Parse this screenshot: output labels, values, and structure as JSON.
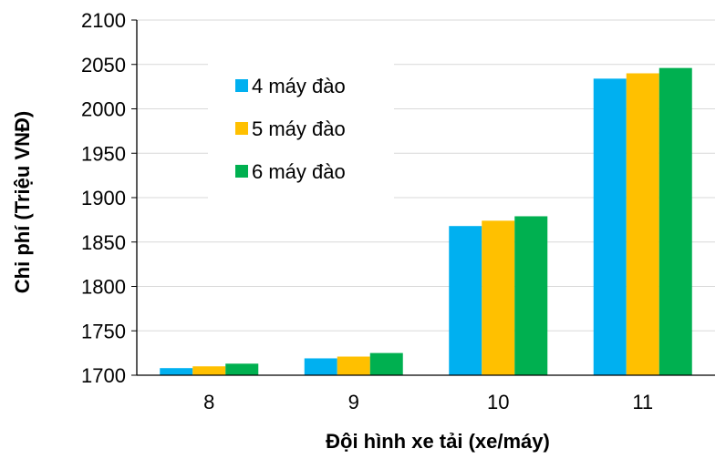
{
  "chart_data": {
    "type": "bar",
    "title": "",
    "xlabel": "Đội hình xe tải (xe/máy)",
    "ylabel": "Chi phí (Triệu VNĐ)",
    "categories": [
      "8",
      "9",
      "10",
      "11"
    ],
    "ylim": [
      1700,
      2100
    ],
    "yticks": [
      1700,
      1750,
      1800,
      1850,
      1900,
      1950,
      2000,
      2050,
      2100
    ],
    "grid": true,
    "legend_position": "top-left",
    "series": [
      {
        "name": "4 máy đào",
        "color": "#00B0F0",
        "values": [
          1708,
          1719,
          1868,
          2034
        ]
      },
      {
        "name": "5 máy đào",
        "color": "#FFC000",
        "values": [
          1710,
          1721,
          1874,
          2040
        ]
      },
      {
        "name": "6 máy đào",
        "color": "#00B050",
        "values": [
          1713,
          1725,
          1879,
          2046
        ]
      }
    ]
  }
}
